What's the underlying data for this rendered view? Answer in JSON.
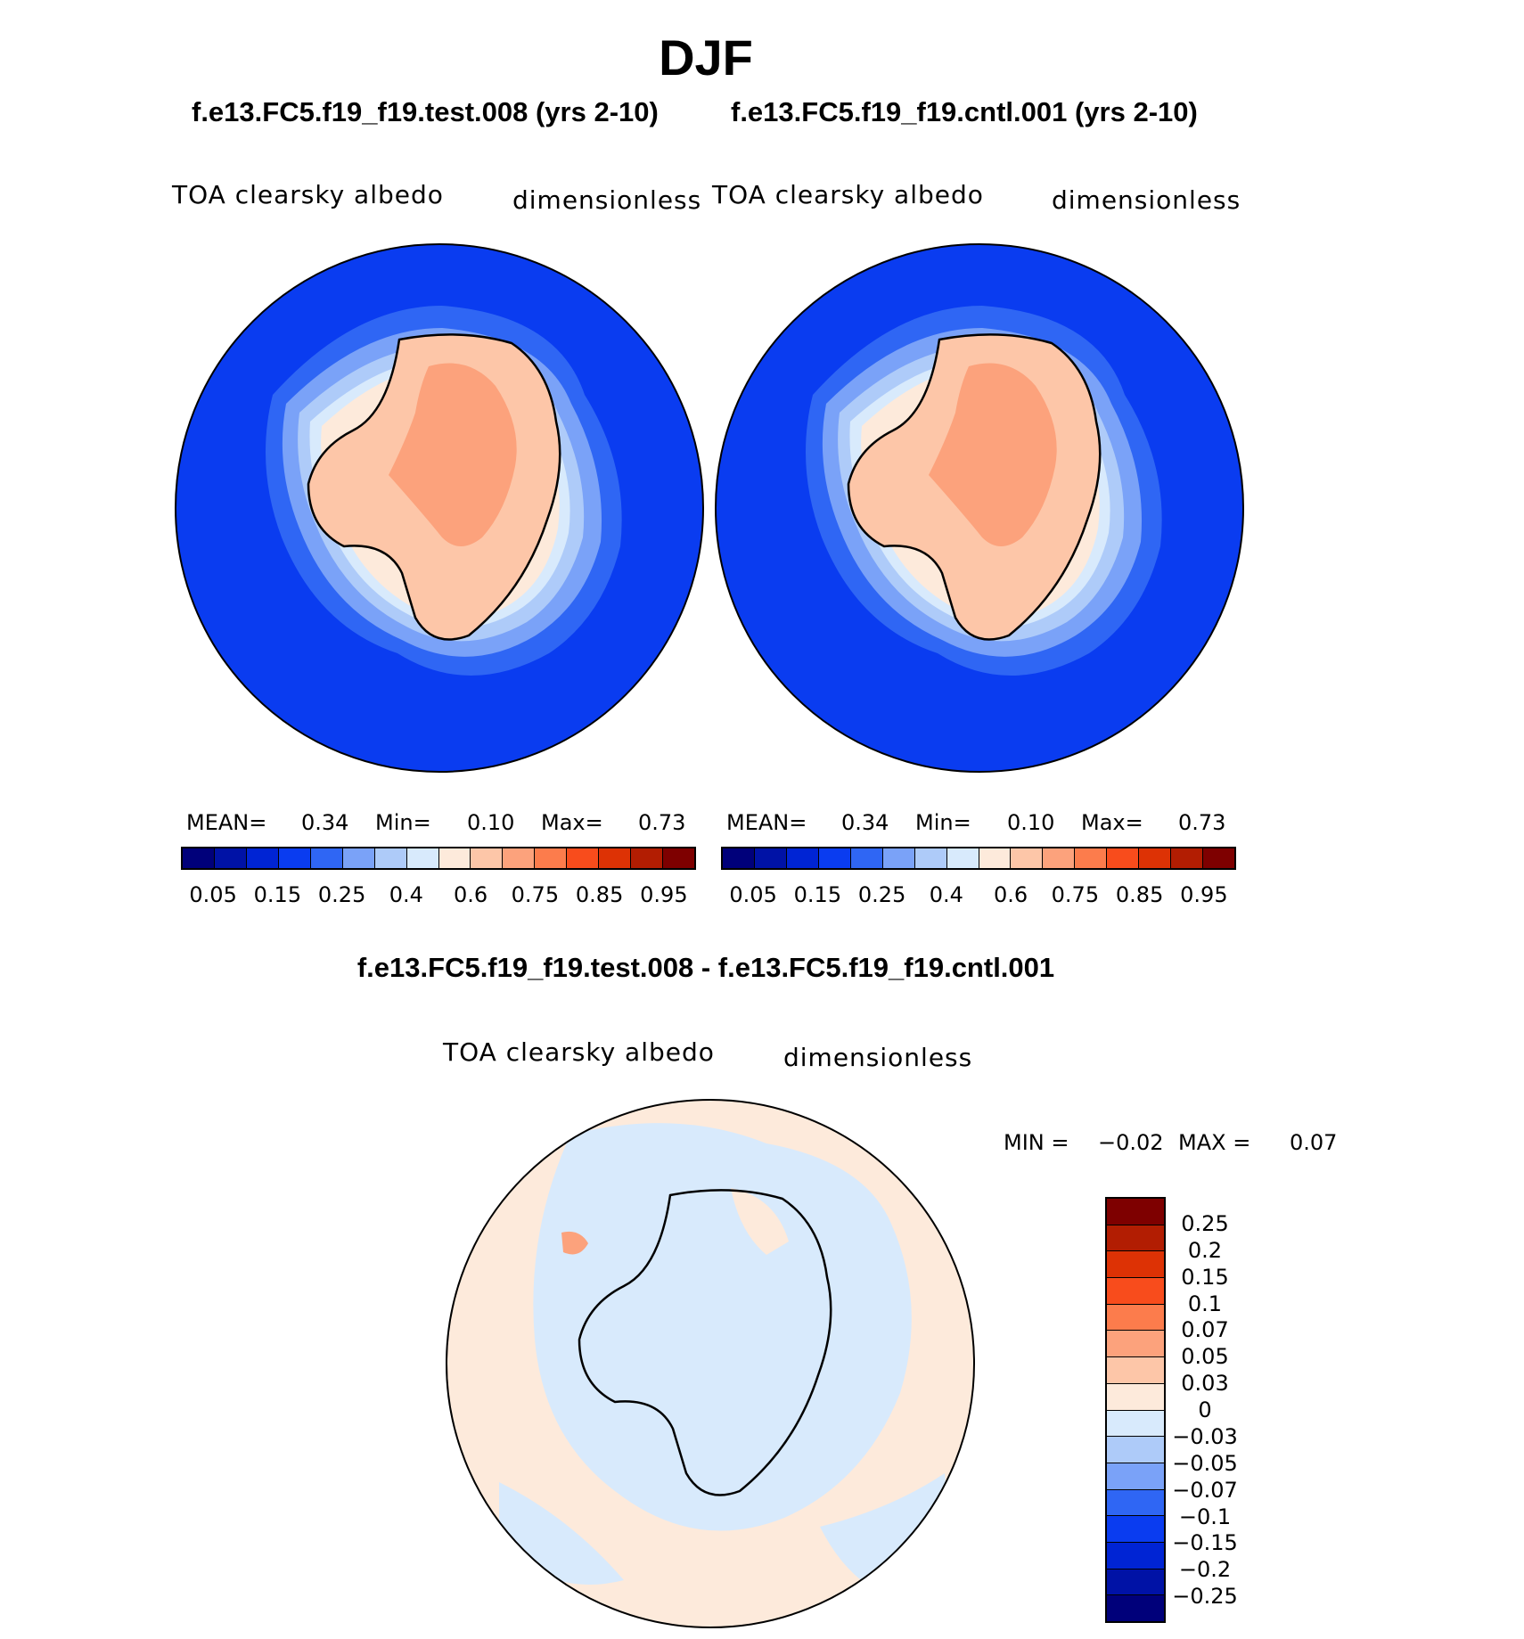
{
  "figure": {
    "title": "DJF",
    "subtitle": "f.e13.FC5.f19_f19.test.008 - f.e13.FC5.f19_f19.cntl.001"
  },
  "panels": [
    {
      "case": "f.e13.FC5.f19_f19.test.008 (yrs 2-10)",
      "variable": "TOA clearsky albedo",
      "units": "dimensionless",
      "mean_label": "MEAN=",
      "mean": "0.34",
      "min_label": "Min=",
      "min": "0.10",
      "max_label": "Max=",
      "max": "0.73"
    },
    {
      "case": "f.e13.FC5.f19_f19.cntl.001 (yrs 2-10)",
      "variable": "TOA clearsky albedo",
      "units": "dimensionless",
      "mean_label": "MEAN=",
      "mean": "0.34",
      "min_label": "Min=",
      "min": "0.10",
      "max_label": "Max=",
      "max": "0.73"
    }
  ],
  "diff_panel": {
    "variable": "TOA clearsky albedo",
    "units": "dimensionless",
    "min_label": "MIN =",
    "min": "−0.02",
    "max_label": "MAX =",
    "max": "0.07"
  },
  "colorbar_main": {
    "colors": [
      "#00007a",
      "#0012a6",
      "#0024d4",
      "#0a3cf0",
      "#2f66f4",
      "#7aa2f8",
      "#aecbf9",
      "#d8eafc",
      "#fdeadb",
      "#fdc6a8",
      "#fca27c",
      "#fc7c4c",
      "#f84c1c",
      "#dd3205",
      "#b21d02",
      "#7e0000"
    ],
    "tick_labels": [
      "0.05",
      "0.15",
      "0.25",
      "0.4",
      "0.6",
      "0.75",
      "0.85",
      "0.95"
    ]
  },
  "colorbar_diff": {
    "colors": [
      "#7e0000",
      "#b21d02",
      "#dd3205",
      "#f84c1c",
      "#fc7c4c",
      "#fca27c",
      "#fdc6a8",
      "#fdeadb",
      "#d8eafc",
      "#aecbf9",
      "#7aa2f8",
      "#2f66f4",
      "#0a3cf0",
      "#0024d4",
      "#0012a6",
      "#00007a"
    ],
    "tick_labels": [
      "0.25",
      "0.2",
      "0.15",
      "0.1",
      "0.07",
      "0.05",
      "0.03",
      "0",
      "−0.03",
      "−0.05",
      "−0.07",
      "−0.1",
      "−0.15",
      "−0.2",
      "−0.25"
    ]
  }
}
